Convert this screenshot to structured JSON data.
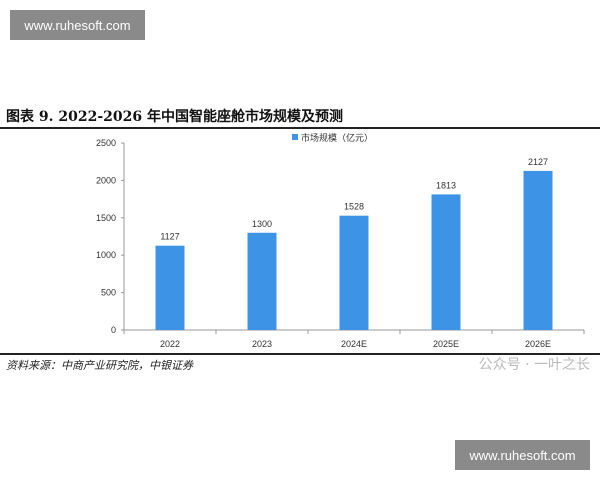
{
  "banner_top": "www.ruhesoft.com",
  "banner_bottom": "www.ruhesoft.com",
  "title": "图表 9. 2022-2026 年中国智能座舱市场规模及预测",
  "source": "资料来源：中商产业研究院，中银证券",
  "watermark": "公众号 · 一叶之长",
  "chart_data": {
    "type": "bar",
    "title": "",
    "categories": [
      "2022",
      "2023",
      "2024E",
      "2025E",
      "2026E"
    ],
    "series": [
      {
        "name": "市场规模（亿元）",
        "values": [
          1127,
          1300,
          1528,
          1813,
          2127
        ],
        "color": "#3d94e6"
      }
    ],
    "ylim": [
      0,
      2500
    ],
    "yticks": [
      0,
      500,
      1000,
      1500,
      2000,
      2500
    ],
    "legend": "top-center",
    "grid": false
  }
}
